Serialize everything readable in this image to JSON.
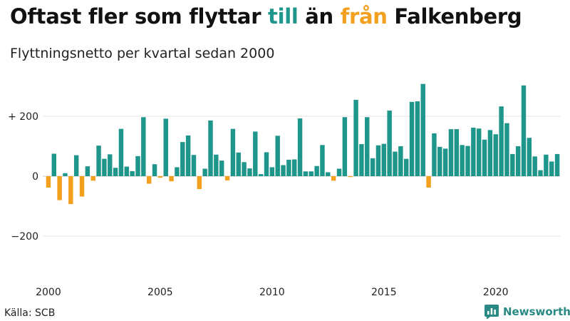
{
  "header": {
    "title_parts": [
      "Oftast fler som flyttar ",
      "till",
      " än ",
      "från",
      " Falkenberg"
    ],
    "subtitle": "Flyttningsnetto per kvartal sedan 2000"
  },
  "footer": {
    "source": "Källa: SCB",
    "brand": "Newsworthy"
  },
  "colors": {
    "positive": "#1f968b",
    "negative": "#f2a01d",
    "grid": "#e3e3e3",
    "brand": "#2a8a83"
  },
  "chart_data": {
    "type": "bar",
    "title": "Oftast fler som flyttar till än från Falkenberg",
    "subtitle": "Flyttningsnetto per kvartal sedan 2000",
    "xlabel": "",
    "ylabel": "",
    "ylim": [
      -300,
      320
    ],
    "yticks": [
      {
        "value": 200,
        "label": "+ 200"
      },
      {
        "value": 0,
        "label": "0"
      },
      {
        "value": -200,
        "label": "−200"
      }
    ],
    "xticks": [
      "2000",
      "2005",
      "2010",
      "2015",
      "2020"
    ],
    "grid": true,
    "legend": "none",
    "start": "2000 Q1",
    "values": [
      -38,
      75,
      -80,
      10,
      -93,
      70,
      -68,
      33,
      -15,
      102,
      58,
      73,
      28,
      158,
      32,
      17,
      67,
      197,
      -25,
      40,
      -5,
      192,
      -17,
      30,
      114,
      136,
      71,
      -43,
      25,
      186,
      72,
      52,
      -14,
      158,
      79,
      47,
      26,
      149,
      7,
      80,
      30,
      135,
      37,
      55,
      56,
      193,
      16,
      16,
      34,
      104,
      13,
      -15,
      25,
      197,
      -3,
      255,
      107,
      197,
      60,
      103,
      108,
      219,
      82,
      100,
      58,
      248,
      250,
      308,
      -38,
      143,
      98,
      92,
      157,
      157,
      104,
      101,
      162,
      159,
      122,
      154,
      140,
      233,
      177,
      74,
      100,
      303,
      128,
      66,
      20,
      72,
      49,
      74
    ]
  }
}
